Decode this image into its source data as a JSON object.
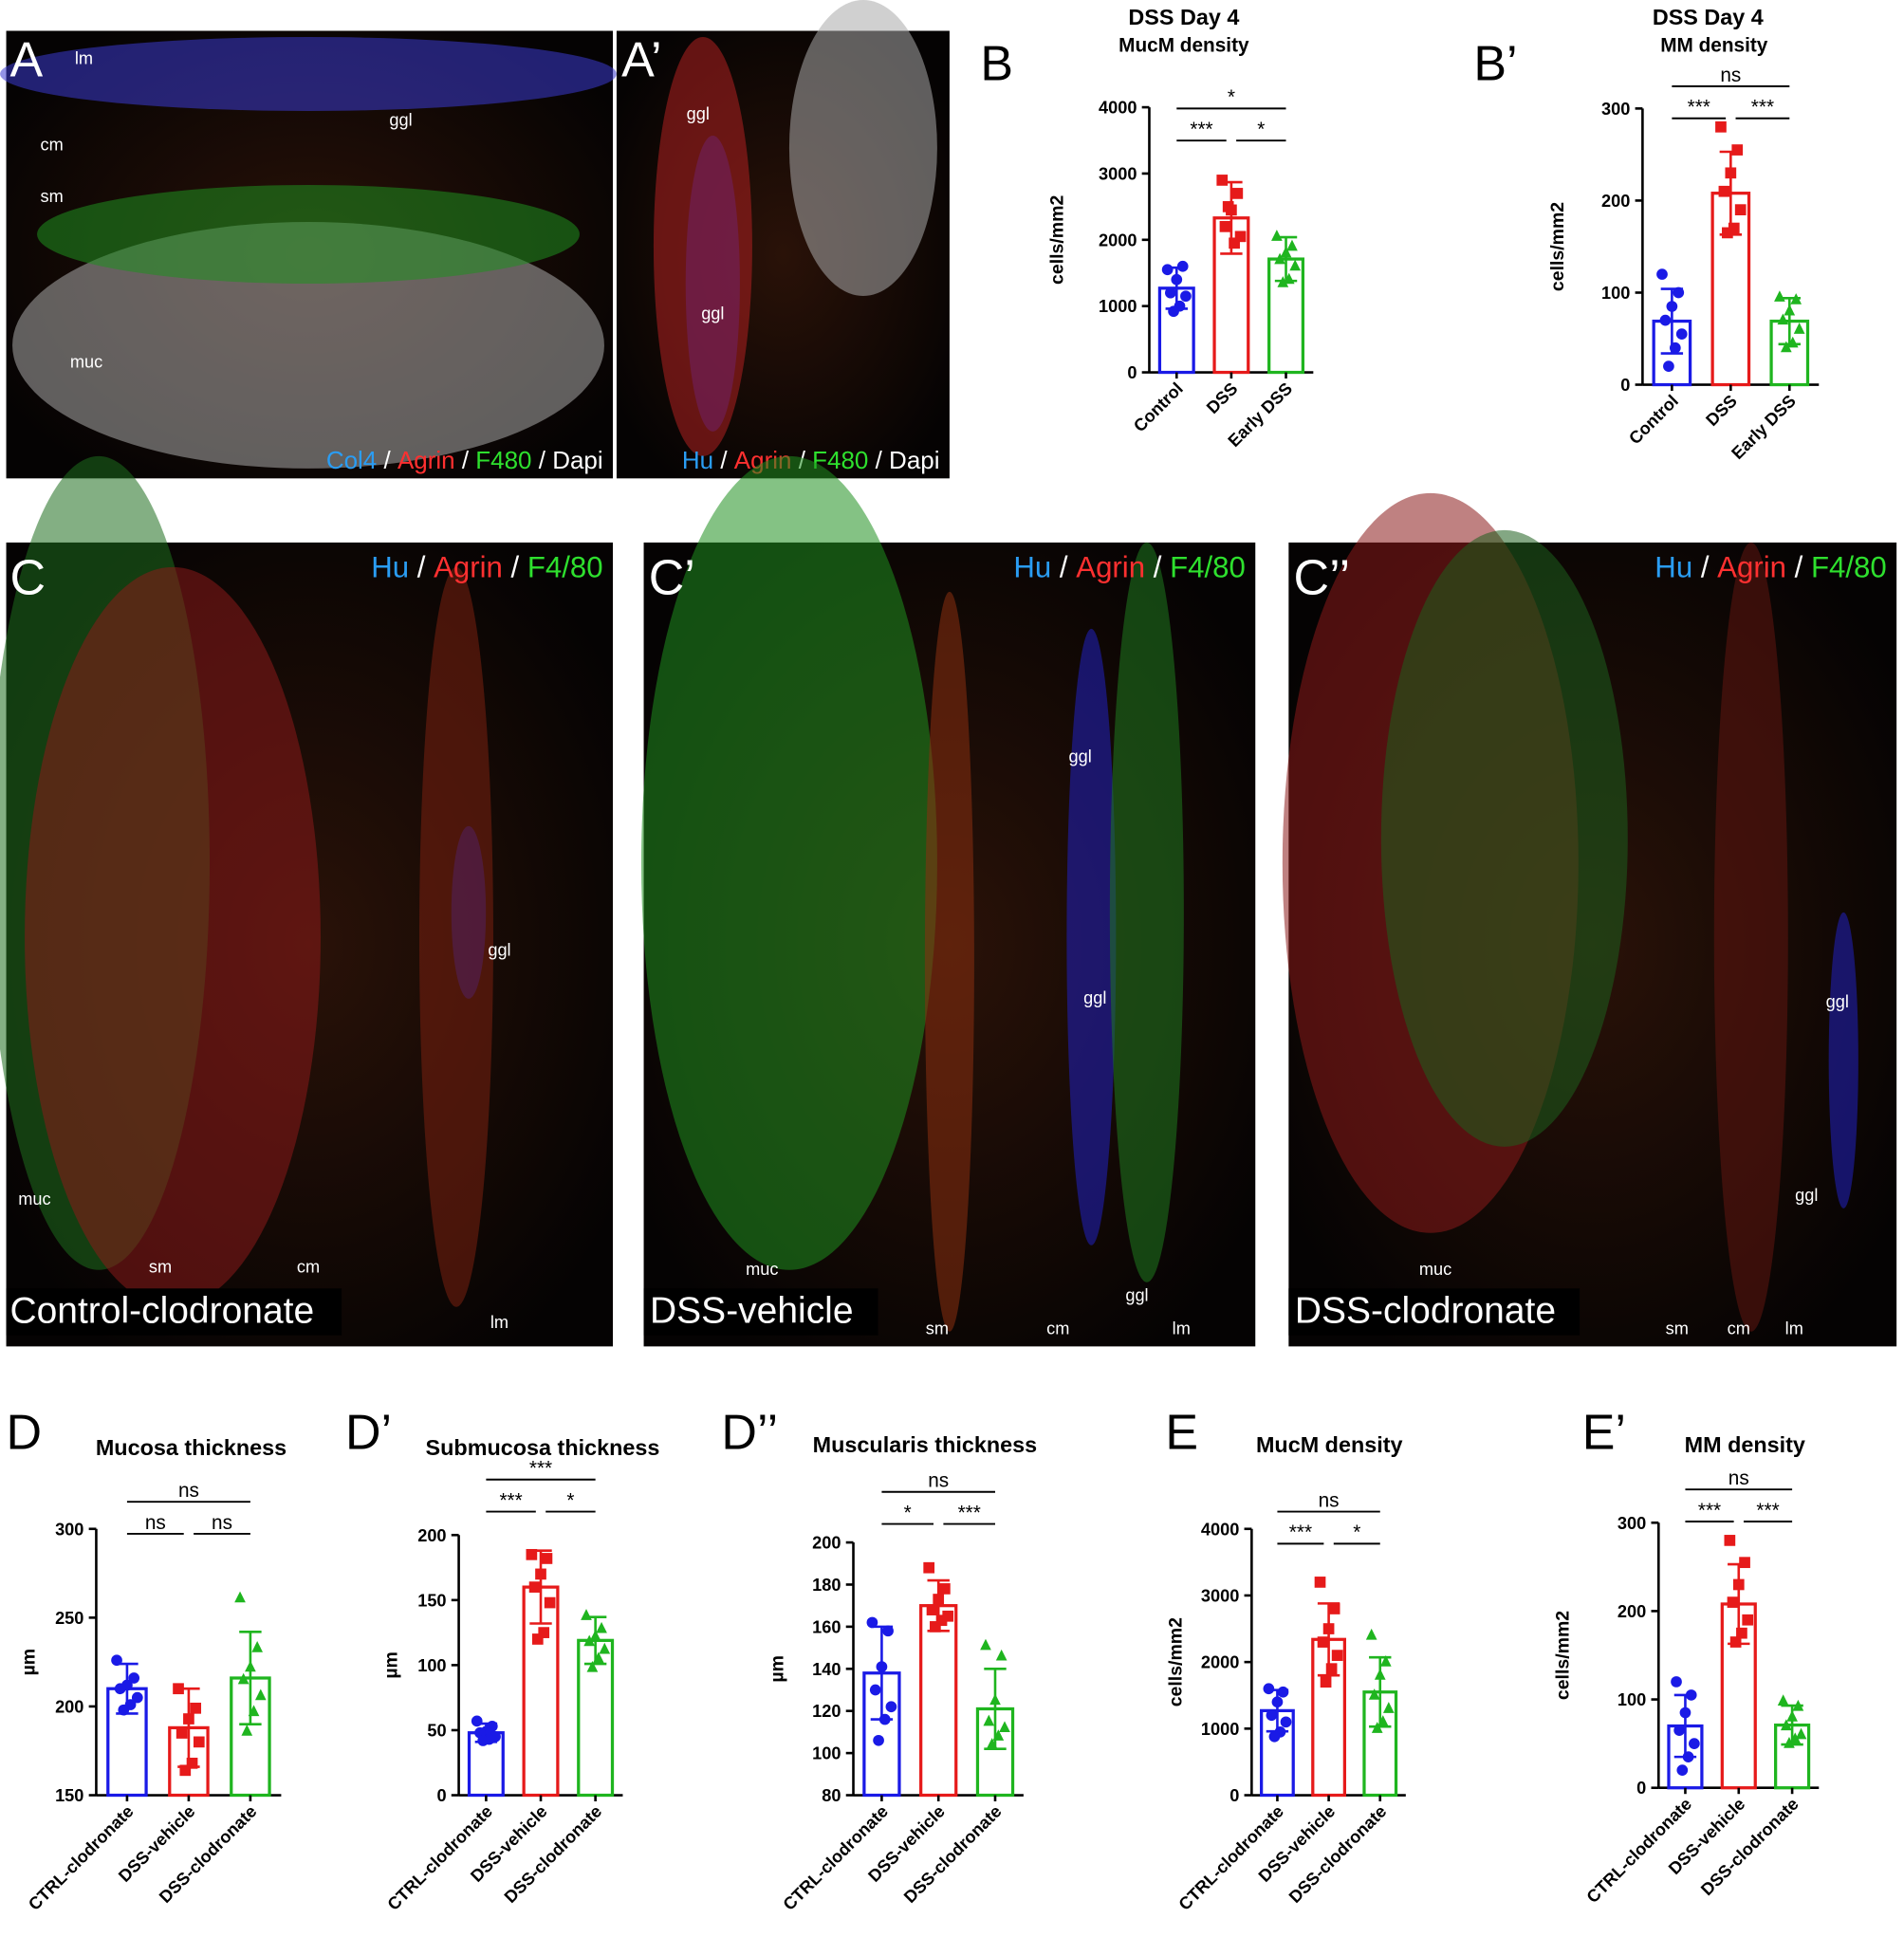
{
  "images": [
    {
      "label": "A",
      "legend": [
        {
          "text": "Col4",
          "color": "#2a9df4"
        },
        {
          "text": "Agrin",
          "color": "#ff3030"
        },
        {
          "text": "F480",
          "color": "#2ee02e"
        },
        {
          "text": "Dapi",
          "color": "#ffffff"
        }
      ],
      "separator": " / ",
      "annotations": [
        "lm",
        "ggl",
        "cm",
        "sm",
        "muc"
      ]
    },
    {
      "label": "A’",
      "legend": [
        {
          "text": "Hu",
          "color": "#2a9df4"
        },
        {
          "text": "Agrin",
          "color": "#ff3030"
        },
        {
          "text": "F480",
          "color": "#2ee02e"
        },
        {
          "text": "Dapi",
          "color": "#ffffff"
        }
      ],
      "separator": " / ",
      "annotations": [
        "ggl",
        "ggl"
      ]
    },
    {
      "label": "C",
      "caption": "Control-clodronate",
      "legend": [
        {
          "text": "Hu",
          "color": "#2a9df4"
        },
        {
          "text": "Agrin",
          "color": "#ff3030"
        },
        {
          "text": "F4/80",
          "color": "#2ee02e"
        }
      ],
      "separator": " / ",
      "annotations": [
        "ggl",
        "muc",
        "sm",
        "cm",
        "lm"
      ]
    },
    {
      "label": "C’",
      "caption": "DSS-vehicle",
      "legend": [
        {
          "text": "Hu",
          "color": "#2a9df4"
        },
        {
          "text": "Agrin",
          "color": "#ff3030"
        },
        {
          "text": "F4/80",
          "color": "#2ee02e"
        }
      ],
      "separator": " / ",
      "annotations": [
        "ggl",
        "ggl",
        "ggl",
        "muc",
        "sm",
        "cm",
        "lm"
      ]
    },
    {
      "label": "C’’",
      "caption": "DSS-clodronate",
      "legend": [
        {
          "text": "Hu",
          "color": "#2a9df4"
        },
        {
          "text": "Agrin",
          "color": "#ff3030"
        },
        {
          "text": "F4/80",
          "color": "#2ee02e"
        }
      ],
      "separator": " / ",
      "annotations": [
        "ggl",
        "ggl",
        "muc",
        "sm",
        "cm",
        "lm"
      ]
    }
  ],
  "chart_data": [
    {
      "type": "bar",
      "panel": "B",
      "title": "DSS Day 4",
      "subtitle": "MucM density",
      "ylabel": "cells/mm2",
      "categories": [
        "Control",
        "DSS",
        "Early DSS"
      ],
      "colors": [
        "#1a1ae6",
        "#e61a1a",
        "#1fb51f"
      ],
      "markers": [
        "circle",
        "square",
        "triangle"
      ],
      "values": [
        1270,
        2330,
        1710
      ],
      "errors": [
        310,
        540,
        330
      ],
      "points": [
        [
          1550,
          1600,
          1400,
          1200,
          1150,
          1000,
          920
        ],
        [
          2900,
          2700,
          2450,
          2200,
          2050,
          1950,
          2500
        ],
        [
          2050,
          1900,
          1800,
          1700,
          1600,
          1400,
          1350
        ]
      ],
      "ylim": [
        0,
        4000
      ],
      "yticks": [
        0,
        1000,
        2000,
        3000,
        4000
      ],
      "comparisons": [
        {
          "between": [
            0,
            2
          ],
          "label": "*"
        },
        {
          "between": [
            0,
            1
          ],
          "label": "***"
        },
        {
          "between": [
            1,
            2
          ],
          "label": "*"
        }
      ]
    },
    {
      "type": "bar",
      "panel": "B’",
      "title": "DSS Day 4",
      "subtitle": "MM density",
      "ylabel": "cells/mm2",
      "categories": [
        "Control",
        "DSS",
        "Early DSS"
      ],
      "colors": [
        "#1a1ae6",
        "#e61a1a",
        "#1fb51f"
      ],
      "markers": [
        "circle",
        "square",
        "triangle"
      ],
      "values": [
        69,
        208,
        69
      ],
      "errors": [
        35,
        45,
        25
      ],
      "points": [
        [
          120,
          100,
          85,
          70,
          55,
          40,
          20
        ],
        [
          280,
          255,
          230,
          210,
          190,
          170,
          165
        ],
        [
          95,
          92,
          80,
          70,
          60,
          45,
          40
        ]
      ],
      "ylim": [
        0,
        300
      ],
      "yticks": [
        0,
        100,
        200,
        300
      ],
      "comparisons": [
        {
          "between": [
            0,
            2
          ],
          "label": "ns"
        },
        {
          "between": [
            0,
            1
          ],
          "label": "***"
        },
        {
          "between": [
            1,
            2
          ],
          "label": "***"
        }
      ]
    },
    {
      "type": "bar",
      "panel": "D",
      "title": "Mucosa thickness",
      "ylabel": "µm",
      "categories": [
        "CTRL-clodronate",
        "DSS-vehicle",
        "DSS-clodronate"
      ],
      "colors": [
        "#1a1ae6",
        "#e61a1a",
        "#1fb51f"
      ],
      "markers": [
        "circle",
        "square",
        "triangle"
      ],
      "values": [
        210,
        188,
        216
      ],
      "errors": [
        14,
        22,
        26
      ],
      "points": [
        [
          226,
          216,
          212,
          210,
          205,
          201,
          198
        ],
        [
          210,
          199,
          193,
          185,
          180,
          168,
          164
        ],
        [
          261,
          233,
          222,
          215,
          206,
          197,
          186
        ]
      ],
      "ylim": [
        150,
        300
      ],
      "yticks": [
        150,
        200,
        250,
        300
      ],
      "comparisons": [
        {
          "between": [
            0,
            2
          ],
          "label": "ns"
        },
        {
          "between": [
            0,
            1
          ],
          "label": "ns"
        },
        {
          "between": [
            1,
            2
          ],
          "label": "ns"
        }
      ]
    },
    {
      "type": "bar",
      "panel": "D’",
      "title": "Submucosa thickness",
      "ylabel": "µm",
      "categories": [
        "CTRL-clodronate",
        "DSS-vehicle",
        "DSS-clodronate"
      ],
      "colors": [
        "#1a1ae6",
        "#e61a1a",
        "#1fb51f"
      ],
      "markers": [
        "circle",
        "square",
        "triangle"
      ],
      "values": [
        48,
        160,
        119
      ],
      "errors": [
        7,
        28,
        18
      ],
      "points": [
        [
          57,
          53,
          49,
          48,
          45,
          43,
          42
        ],
        [
          185,
          182,
          170,
          160,
          148,
          125,
          120
        ],
        [
          138,
          128,
          122,
          118,
          112,
          105,
          98
        ]
      ],
      "ylim": [
        0,
        200
      ],
      "yticks": [
        0,
        50,
        100,
        150,
        200
      ],
      "comparisons": [
        {
          "between": [
            0,
            2
          ],
          "label": "***"
        },
        {
          "between": [
            0,
            1
          ],
          "label": "***"
        },
        {
          "between": [
            1,
            2
          ],
          "label": "*"
        }
      ]
    },
    {
      "type": "bar",
      "panel": "D’’",
      "title": "Muscularis thickness",
      "ylabel": "µm",
      "categories": [
        "CTRL-clodronate",
        "DSS-vehicle",
        "DSS-clodronate"
      ],
      "colors": [
        "#1a1ae6",
        "#e61a1a",
        "#1fb51f"
      ],
      "markers": [
        "circle",
        "square",
        "triangle"
      ],
      "values": [
        138,
        170,
        121
      ],
      "errors": [
        22,
        12,
        19
      ],
      "points": [
        [
          162,
          158,
          141,
          130,
          122,
          116,
          106
        ],
        [
          188,
          178,
          173,
          168,
          165,
          163,
          160
        ],
        [
          151,
          146,
          125,
          115,
          112,
          108,
          104
        ]
      ],
      "ylim": [
        80,
        200
      ],
      "yticks": [
        80,
        100,
        120,
        140,
        160,
        180,
        200
      ],
      "comparisons": [
        {
          "between": [
            0,
            2
          ],
          "label": "ns"
        },
        {
          "between": [
            0,
            1
          ],
          "label": "*"
        },
        {
          "between": [
            1,
            2
          ],
          "label": "***"
        }
      ]
    },
    {
      "type": "bar",
      "panel": "E",
      "title": "MucM density",
      "ylabel": "cells/mm2",
      "categories": [
        "CTRL-clodronate",
        "DSS-vehicle",
        "DSS-clodronate"
      ],
      "colors": [
        "#1a1ae6",
        "#e61a1a",
        "#1fb51f"
      ],
      "markers": [
        "circle",
        "square",
        "triangle"
      ],
      "values": [
        1270,
        2340,
        1550
      ],
      "errors": [
        310,
        540,
        520
      ],
      "points": [
        [
          1600,
          1550,
          1400,
          1200,
          1100,
          950,
          880
        ],
        [
          3200,
          2800,
          2500,
          2300,
          2100,
          1900,
          1700
        ],
        [
          2400,
          2000,
          1800,
          1500,
          1300,
          1100,
          1000
        ]
      ],
      "ylim": [
        0,
        4000
      ],
      "yticks": [
        0,
        1000,
        2000,
        3000,
        4000
      ],
      "comparisons": [
        {
          "between": [
            0,
            2
          ],
          "label": "ns"
        },
        {
          "between": [
            0,
            1
          ],
          "label": "***"
        },
        {
          "between": [
            1,
            2
          ],
          "label": "*"
        }
      ]
    },
    {
      "type": "bar",
      "panel": "E’",
      "title": "MM density",
      "ylabel": "cells/mm2",
      "categories": [
        "CTRL-clodronate",
        "DSS-vehicle",
        "DSS-clodronate"
      ],
      "colors": [
        "#1a1ae6",
        "#e61a1a",
        "#1fb51f"
      ],
      "markers": [
        "circle",
        "square",
        "triangle"
      ],
      "values": [
        70,
        208,
        71
      ],
      "errors": [
        35,
        45,
        22
      ],
      "points": [
        [
          120,
          105,
          85,
          65,
          50,
          35,
          20
        ],
        [
          280,
          255,
          230,
          210,
          190,
          175,
          165
        ],
        [
          98,
          92,
          80,
          70,
          60,
          55,
          50
        ]
      ],
      "ylim": [
        0,
        300
      ],
      "yticks": [
        0,
        100,
        200,
        300
      ],
      "comparisons": [
        {
          "between": [
            0,
            2
          ],
          "label": "ns"
        },
        {
          "between": [
            0,
            1
          ],
          "label": "***"
        },
        {
          "between": [
            1,
            2
          ],
          "label": "***"
        }
      ]
    }
  ]
}
